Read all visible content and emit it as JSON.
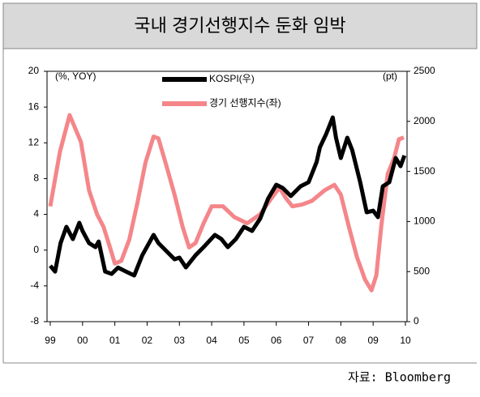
{
  "chart_data": {
    "type": "line",
    "title": "국내 경기선행지수 둔화 임박",
    "source": "자료: Bloomberg",
    "y_label": "(%, YOY)",
    "y2_label": "(pt)",
    "xlim": [
      1998.9,
      2010.05
    ],
    "xticks": [
      {
        "value": 1999,
        "label": "99"
      },
      {
        "value": 2000,
        "label": "00"
      },
      {
        "value": 2001,
        "label": "01"
      },
      {
        "value": 2002,
        "label": "02"
      },
      {
        "value": 2003,
        "label": "03"
      },
      {
        "value": 2004,
        "label": "04"
      },
      {
        "value": 2005,
        "label": "05"
      },
      {
        "value": 2006,
        "label": "06"
      },
      {
        "value": 2007,
        "label": "07"
      },
      {
        "value": 2008,
        "label": "08"
      },
      {
        "value": 2009,
        "label": "09"
      },
      {
        "value": 2010,
        "label": "10"
      }
    ],
    "ylim": [
      -8,
      20
    ],
    "yticks": [
      -8,
      -4,
      0,
      4,
      8,
      12,
      16,
      20
    ],
    "y2lim": [
      0,
      2500
    ],
    "y2ticks": [
      0,
      500,
      1000,
      1500,
      2000,
      2500
    ],
    "series": [
      {
        "name": "KOSPI(우)",
        "color": "#000000",
        "axis": "y2",
        "x": [
          1999.0,
          1999.15,
          1999.32,
          1999.5,
          1999.7,
          1999.9,
          2000.0,
          2000.2,
          2000.4,
          2000.5,
          2000.7,
          2000.9,
          2001.1,
          2001.35,
          2001.6,
          2001.85,
          2002.2,
          2002.35,
          2002.6,
          2002.85,
          2003.0,
          2003.2,
          2003.5,
          2003.75,
          2004.1,
          2004.3,
          2004.5,
          2004.75,
          2005.0,
          2005.25,
          2005.5,
          2005.75,
          2006.0,
          2006.2,
          2006.45,
          2006.75,
          2007.0,
          2007.25,
          2007.35,
          2007.55,
          2007.75,
          2007.85,
          2008.0,
          2008.2,
          2008.35,
          2008.6,
          2008.8,
          2009.0,
          2009.15,
          2009.3,
          2009.5,
          2009.7,
          2009.85,
          2009.97
        ],
        "values": [
          558,
          500,
          785,
          947,
          825,
          987,
          906,
          785,
          744,
          800,
          500,
          477,
          540,
          500,
          461,
          663,
          866,
          785,
          704,
          623,
          639,
          542,
          663,
          744,
          866,
          825,
          744,
          825,
          947,
          906,
          1028,
          1230,
          1367,
          1335,
          1254,
          1351,
          1392,
          1594,
          1740,
          1877,
          2039,
          1837,
          1634,
          1837,
          1715,
          1392,
          1092,
          1108,
          1044,
          1351,
          1392,
          1634,
          1553,
          1659
        ]
      },
      {
        "name": "경기 선행지수(좌)",
        "color": "#f4868a",
        "axis": "y",
        "x": [
          1999.0,
          1999.3,
          1999.6,
          1999.95,
          2000.2,
          2000.45,
          2000.65,
          2000.85,
          2001.0,
          2001.2,
          2001.45,
          2001.7,
          2001.95,
          2002.2,
          2002.35,
          2002.6,
          2002.85,
          2003.1,
          2003.3,
          2003.5,
          2003.75,
          2004.0,
          2004.35,
          2004.7,
          2005.1,
          2005.5,
          2005.85,
          2006.1,
          2006.3,
          2006.5,
          2006.8,
          2007.1,
          2007.5,
          2007.8,
          2008.0,
          2008.25,
          2008.5,
          2008.75,
          2008.95,
          2009.1,
          2009.25,
          2009.45,
          2009.65,
          2009.8,
          2009.95
        ],
        "values": [
          4.9,
          11.0,
          15.1,
          12.1,
          6.7,
          4.0,
          2.6,
          0.3,
          -1.5,
          -1.2,
          1.2,
          5.3,
          9.8,
          12.7,
          12.5,
          9.4,
          6.2,
          2.6,
          0.3,
          0.8,
          3.0,
          4.9,
          4.9,
          3.7,
          3.0,
          4.0,
          5.8,
          7.0,
          5.8,
          4.9,
          5.1,
          5.5,
          6.7,
          7.3,
          6.2,
          2.6,
          -0.8,
          -3.3,
          -4.5,
          -2.8,
          2.6,
          8.5,
          10.3,
          12.4,
          12.6
        ]
      }
    ]
  }
}
